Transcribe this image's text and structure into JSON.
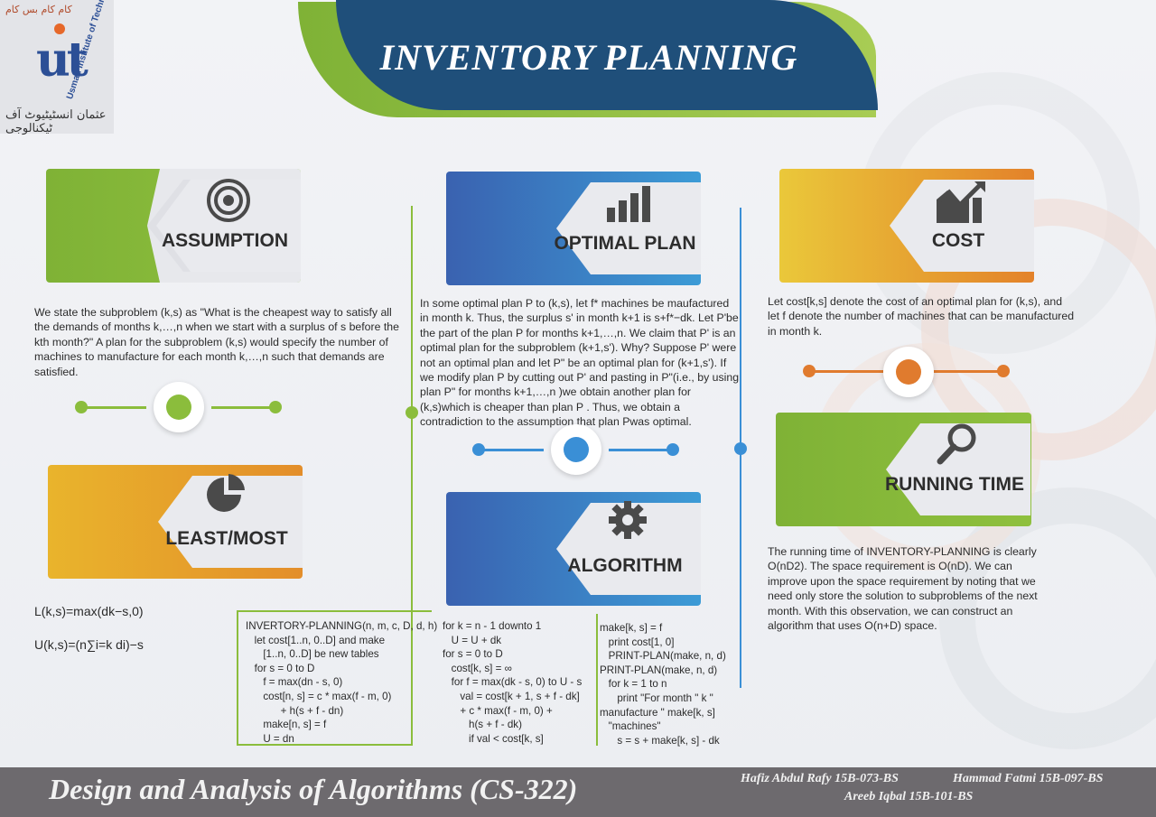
{
  "logo": {
    "name": "Usman Institute of Technology",
    "urdu_name": "عثمان انسٹیٹیوٹ آف ٹیکنالوجی",
    "tagline": "کام کام بس کام"
  },
  "title": "INVENTORY PLANNING",
  "sections": {
    "assumption": {
      "label": "ASSUMPTION",
      "icon": "target-icon",
      "text": "We state the subproblem (k,s) as \"What is the cheapest way to satisfy all the demands of months k,…,n when we start with a surplus of s before the kth month?\" A plan for the subproblem (k,s) would specify the number of machines to manufacture for each month k,…,n such that demands are satisfied."
    },
    "least_most": {
      "label": "LEAST/MOST",
      "icon": "pie-chart-icon",
      "formula_l": "L(k,s)=max(dk−s,0)",
      "formula_u": "U(k,s)=(n∑i=k di)−s"
    },
    "optimal_plan": {
      "label": "OPTIMAL PLAN",
      "icon": "bar-chart-icon",
      "text": "In some optimal plan P to (k,s), let f* machines be maufactured in month k. Thus, the surplus s' in month k+1 is s+f*−dk. Let P'be the part of the plan P for months k+1,…,n. We claim that P' is an optimal plan for the subproblem (k+1,s'). Why? Suppose P' were not an optimal plan and let P\" be an optimal plan for (k+1,s'). If we modify plan P by cutting out P' and pasting in P\"(i.e., by using plan P\" for months k+1,…,n )we obtain another plan for (k,s)which is cheaper than plan P . Thus, we obtain a contradiction to the assumption that plan Pwas optimal."
    },
    "algorithm": {
      "label": "ALGORITHM",
      "icon": "gear-icon",
      "code_col1": "INVERTORY-PLANNING(n, m, c, D, d, h)\n   let cost[1..n, 0..D] and make\n      [1..n, 0..D] be new tables\n   for s = 0 to D\n      f = max(dn - s, 0)\n      cost[n, s] = c * max(f - m, 0)\n            + h(s + f - dn)\n      make[n, s] = f\n      U = dn",
      "code_col2": "for k = n - 1 downto 1\n   U = U + dk\nfor s = 0 to D\n   cost[k, s] = ∞\n   for f = max(dk - s, 0) to U - s\n      val = cost[k + 1, s + f - dk]\n      + c * max(f - m, 0) +\n         h(s + f - dk)\n         if val < cost[k, s]",
      "code_col3": "make[k, s] = f\n   print cost[1, 0]\n   PRINT-PLAN(make, n, d)\nPRINT-PLAN(make, n, d)\n   for k = 1 to n\n      print \"For month \" k \"\nmanufacture \" make[k, s]\n   \"machines\"\n      s = s + make[k, s] - dk"
    },
    "cost": {
      "label": "COST",
      "icon": "trend-chart-icon",
      "text": "Let cost[k,s] denote the cost of an optimal plan for (k,s), and let f denote the number of machines that can be manufactured in month k."
    },
    "running_time": {
      "label": "RUNNING TIME",
      "icon": "magnifier-icon",
      "text": "The running time of INVENTORY-PLANNING is clearly O(nD2). The space requirement is O(nD). We can improve upon the space requirement by noting that we need only store the solution to subproblems of the next month. With this observation, we can construct an algorithm that uses O(n+D) space."
    }
  },
  "footer": {
    "course": "Design and Analysis of Algorithms (CS-322)",
    "author1": "Hafiz Abdul Rafy   15B-073-BS",
    "author2": "Hammad Fatmi 15B-097-BS",
    "author3": "Areeb Iqbal      15B-101-BS"
  },
  "colors": {
    "green": "#8bbd3c",
    "blue": "#3a8fd6",
    "orange": "#e07b2e",
    "navy": "#1f4f7a",
    "footer": "#6d6a6e"
  }
}
